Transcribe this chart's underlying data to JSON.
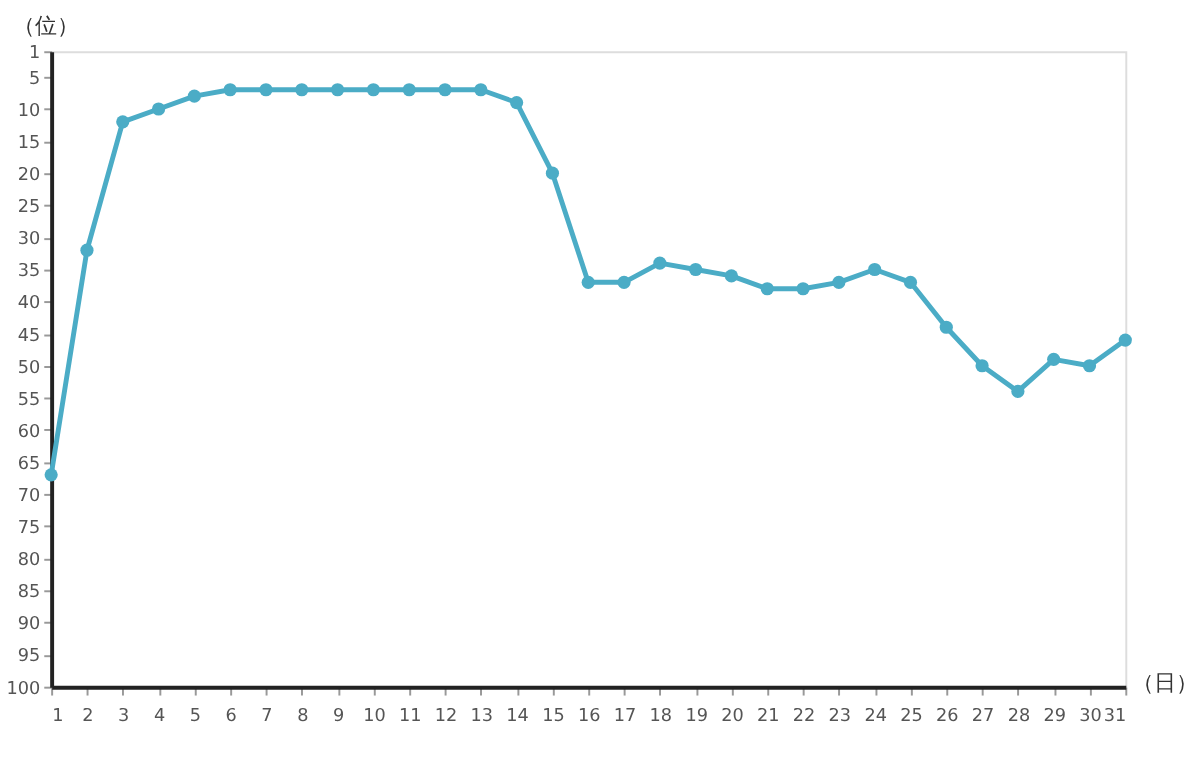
{
  "chart_data": {
    "type": "line",
    "xlabel": "（日）",
    "ylabel": "（位）",
    "x": [
      1,
      2,
      3,
      4,
      5,
      6,
      7,
      8,
      9,
      10,
      11,
      12,
      13,
      14,
      15,
      16,
      17,
      18,
      19,
      20,
      21,
      22,
      23,
      24,
      25,
      26,
      27,
      28,
      29,
      30,
      31
    ],
    "series": [
      {
        "color": "#4bacc6",
        "values": [
          67,
          32,
          12,
          10,
          8,
          7,
          7,
          7,
          7,
          7,
          7,
          7,
          7,
          9,
          20,
          37,
          37,
          34,
          35,
          36,
          38,
          38,
          37,
          35,
          37,
          44,
          50,
          54,
          49,
          50,
          46
        ]
      }
    ],
    "xlim": [
      1,
      31
    ],
    "xticks": [
      1,
      2,
      3,
      4,
      5,
      6,
      7,
      8,
      9,
      10,
      11,
      12,
      13,
      14,
      15,
      16,
      17,
      18,
      19,
      20,
      21,
      22,
      23,
      24,
      25,
      26,
      27,
      28,
      29,
      30,
      31
    ],
    "ylim": [
      100,
      1
    ],
    "yticks": [
      1,
      5,
      10,
      15,
      20,
      25,
      30,
      35,
      40,
      45,
      50,
      55,
      60,
      65,
      70,
      75,
      80,
      85,
      90,
      95,
      100
    ],
    "grid": false,
    "marker": "circle",
    "line_style": "solid"
  }
}
